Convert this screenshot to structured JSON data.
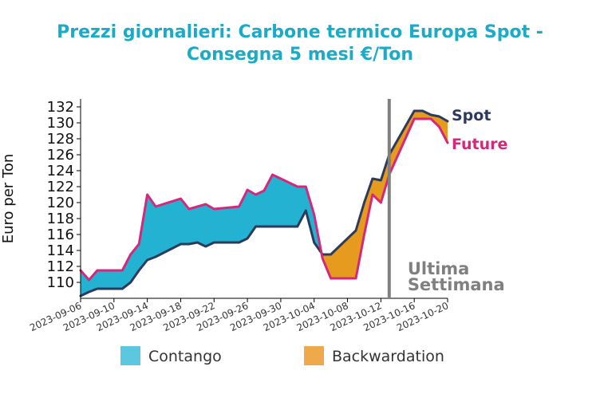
{
  "chart_data": {
    "type": "area",
    "title_line1": "Prezzi giornalieri: Carbone termico Europa Spot -",
    "title_line2": "Consegna 5 mesi €/Ton",
    "xlabel": "",
    "ylabel": "Euro per Ton",
    "ylim": [
      108,
      133
    ],
    "yticks": [
      110,
      112,
      114,
      116,
      118,
      120,
      122,
      124,
      126,
      128,
      130,
      132
    ],
    "xlim": [
      "2023-09-06",
      "2023-10-20"
    ],
    "xticks": [
      "2023-09-06",
      "2023-09-10",
      "2023-09-14",
      "2023-09-18",
      "2023-09-22",
      "2023-09-26",
      "2023-09-30",
      "2023-10-04",
      "2023-10-08",
      "2023-10-12",
      "2023-10-16",
      "2023-10-20"
    ],
    "grid": false,
    "x": [
      "2023-09-06",
      "2023-09-07",
      "2023-09-08",
      "2023-09-11",
      "2023-09-12",
      "2023-09-13",
      "2023-09-14",
      "2023-09-15",
      "2023-09-18",
      "2023-09-19",
      "2023-09-20",
      "2023-09-21",
      "2023-09-22",
      "2023-09-25",
      "2023-09-26",
      "2023-09-27",
      "2023-09-28",
      "2023-09-29",
      "2023-10-02",
      "2023-10-03",
      "2023-10-04",
      "2023-10-05",
      "2023-10-06",
      "2023-10-09",
      "2023-10-10",
      "2023-10-11",
      "2023-10-12",
      "2023-10-13",
      "2023-10-16",
      "2023-10-17",
      "2023-10-18",
      "2023-10-19",
      "2023-10-20"
    ],
    "series": [
      {
        "name": "Spot",
        "color": "#2e3a5c",
        "values": [
          108.3,
          108.8,
          109.2,
          109.2,
          110.0,
          111.5,
          112.8,
          113.2,
          114.8,
          114.8,
          115.0,
          114.5,
          115.0,
          115.0,
          115.5,
          117.0,
          117.0,
          117.0,
          117.0,
          119.0,
          115.0,
          113.5,
          113.5,
          116.5,
          120.0,
          123.0,
          122.8,
          126.0,
          131.5,
          131.5,
          131.0,
          130.8,
          130.2
        ]
      },
      {
        "name": "Future",
        "color": "#d6287a",
        "values": [
          111.5,
          110.3,
          111.5,
          111.5,
          113.5,
          114.8,
          121.0,
          119.5,
          120.5,
          119.2,
          119.5,
          119.8,
          119.2,
          119.5,
          121.6,
          121.0,
          121.5,
          123.5,
          122.0,
          122.0,
          118.5,
          113.0,
          110.5,
          110.5,
          116.0,
          121.0,
          120.0,
          123.5,
          130.5,
          130.5,
          130.5,
          129.5,
          127.5
        ]
      }
    ],
    "fill_legend": [
      {
        "name": "Contango",
        "color": "#5bc8e0"
      },
      {
        "name": "Backwardation",
        "color": "#f0a94a"
      }
    ],
    "fill_colors": {
      "contango": "#23b2d2",
      "backwardation": "#e69a1e"
    },
    "annotation": {
      "date": "2023-10-13",
      "text_line1": "Ultima",
      "text_line2": "Settimana",
      "color": "#808080"
    }
  }
}
